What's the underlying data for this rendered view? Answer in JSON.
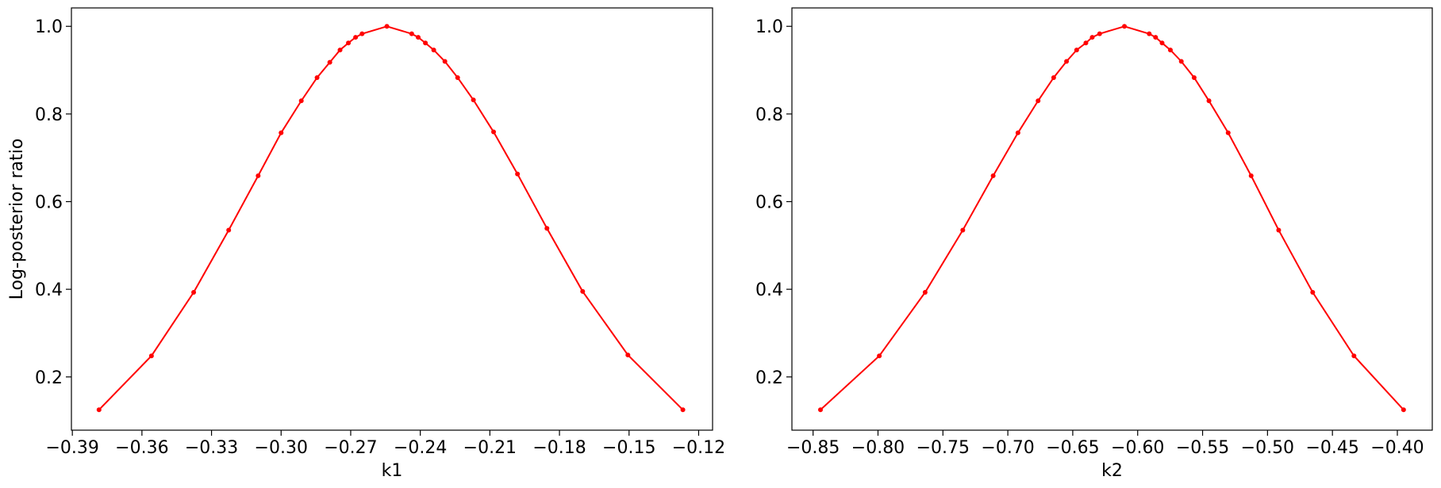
{
  "chart_data": [
    {
      "type": "line",
      "xlabel": "k1",
      "ylabel": "Log-posterior ratio",
      "color": "#ff0000",
      "x": [
        -0.3785,
        -0.3559,
        -0.3377,
        -0.3226,
        -0.3099,
        -0.3,
        -0.2913,
        -0.2845,
        -0.279,
        -0.2746,
        -0.271,
        -0.2679,
        -0.2651,
        -0.2544,
        -0.2437,
        -0.2409,
        -0.2378,
        -0.2342,
        -0.2294,
        -0.2239,
        -0.2171,
        -0.2084,
        -0.1981,
        -0.1854,
        -0.17,
        -0.1505,
        -0.1268
      ],
      "values": [
        0.125,
        0.248,
        0.393,
        0.535,
        0.659,
        0.757,
        0.83,
        0.883,
        0.918,
        0.946,
        0.962,
        0.975,
        0.983,
        1.0,
        0.983,
        0.975,
        0.962,
        0.946,
        0.92,
        0.883,
        0.832,
        0.759,
        0.663,
        0.539,
        0.395,
        0.25,
        0.125
      ],
      "xlim": [
        -0.3904,
        -0.114
      ],
      "ylim": [
        0.0785,
        1.042
      ],
      "xticks": [
        {
          "value": -0.39,
          "label": "−0.39"
        },
        {
          "value": -0.36,
          "label": "−0.36"
        },
        {
          "value": -0.33,
          "label": "−0.33"
        },
        {
          "value": -0.3,
          "label": "−0.30"
        },
        {
          "value": -0.27,
          "label": "−0.27"
        },
        {
          "value": -0.24,
          "label": "−0.24"
        },
        {
          "value": -0.21,
          "label": "−0.21"
        },
        {
          "value": -0.18,
          "label": "−0.18"
        },
        {
          "value": -0.15,
          "label": "−0.15"
        },
        {
          "value": -0.12,
          "label": "−0.12"
        }
      ],
      "yticks": [
        0.2,
        0.4,
        0.6,
        0.8,
        {
          "value": 1,
          "label": "1.0"
        }
      ]
    },
    {
      "type": "line",
      "xlabel": "k2",
      "color": "#ff0000",
      "x": [
        -0.8443,
        -0.799,
        -0.7637,
        -0.7347,
        -0.7113,
        -0.6922,
        -0.6767,
        -0.6647,
        -0.6548,
        -0.647,
        -0.6399,
        -0.635,
        -0.6293,
        -0.6102,
        -0.5911,
        -0.5862,
        -0.5812,
        -0.5748,
        -0.5664,
        -0.5565,
        -0.5451,
        -0.5303,
        -0.5126,
        -0.4914,
        -0.4652,
        -0.4334,
        -0.3952
      ],
      "values": [
        0.125,
        0.248,
        0.393,
        0.535,
        0.659,
        0.757,
        0.83,
        0.883,
        0.92,
        0.946,
        0.962,
        0.975,
        0.983,
        1.0,
        0.983,
        0.975,
        0.962,
        0.946,
        0.92,
        0.883,
        0.83,
        0.757,
        0.659,
        0.535,
        0.393,
        0.248,
        0.125
      ],
      "xlim": [
        -0.8663,
        -0.3731
      ],
      "ylim": [
        0.0785,
        1.042
      ],
      "xticks": [
        {
          "value": -0.85,
          "label": "−0.85"
        },
        {
          "value": -0.8,
          "label": "−0.80"
        },
        {
          "value": -0.75,
          "label": "−0.75"
        },
        {
          "value": -0.7,
          "label": "−0.70"
        },
        {
          "value": -0.65,
          "label": "−0.65"
        },
        {
          "value": -0.6,
          "label": "−0.60"
        },
        {
          "value": -0.55,
          "label": "−0.55"
        },
        {
          "value": -0.5,
          "label": "−0.50"
        },
        {
          "value": -0.45,
          "label": "−0.45"
        },
        {
          "value": -0.4,
          "label": "−0.40"
        }
      ],
      "yticks": [
        0.2,
        0.4,
        0.6,
        0.8,
        {
          "value": 1,
          "label": "1.0"
        }
      ]
    }
  ]
}
